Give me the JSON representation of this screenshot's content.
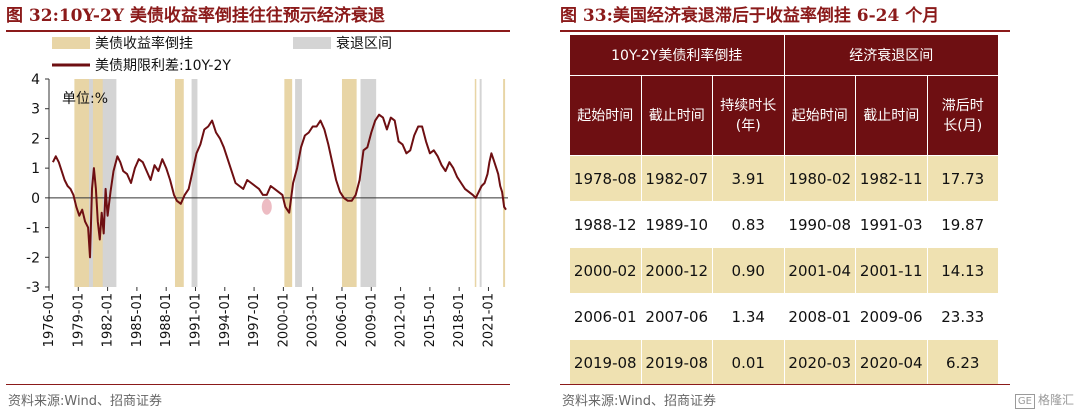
{
  "left_title": "图 32:10Y-2Y 美债收益率倒挂往往预示经济衰退",
  "left_source": "资料来源:Wind、招商证券",
  "right_title": "图 33:美国经济衰退滞后于收益率倒挂 6-24 个月",
  "right_source": "资料来源:Wind、招商证券",
  "watermark": {
    "box": "GE",
    "text": "格隆汇"
  },
  "colors": {
    "brand": "#8b1a1a",
    "header": "#6e0f12",
    "band_inversion": "#e8d5a6",
    "band_recession": "#d4d4d4",
    "line": "#6e0f12",
    "row_alt": "#efe1b1"
  },
  "chart_data": {
    "type": "line",
    "title": "",
    "unit_label": "单位:%",
    "legend": [
      {
        "key": "inversion",
        "label": "美债收益率倒挂",
        "kind": "band"
      },
      {
        "key": "recession",
        "label": "衰退区间",
        "kind": "band"
      },
      {
        "key": "spread",
        "label": "美债期限利差:10Y-2Y",
        "kind": "line"
      }
    ],
    "legend_position": "top",
    "grid": false,
    "ylim": [
      -3,
      4
    ],
    "yticks": [
      -3,
      -2,
      -1,
      0,
      1,
      2,
      3,
      4
    ],
    "xlim": [
      1976.0,
      2023.0
    ],
    "xticks": [
      "1976-01",
      "1979-01",
      "1982-01",
      "1985-01",
      "1988-01",
      "1991-01",
      "1994-01",
      "1997-01",
      "2000-01",
      "2003-01",
      "2006-01",
      "2009-01",
      "2012-01",
      "2015-01",
      "2018-01",
      "2021-01"
    ],
    "inversion_bands": [
      [
        1978.6,
        1982.5
      ],
      [
        1988.9,
        1989.8
      ],
      [
        2000.1,
        2000.9
      ],
      [
        2006.0,
        2007.5
      ],
      [
        2019.6,
        2019.7
      ],
      [
        2022.5,
        2022.7
      ]
    ],
    "recession_bands": [
      [
        1980.1,
        1980.5
      ],
      [
        1981.5,
        1982.9
      ],
      [
        1990.6,
        1991.2
      ],
      [
        2001.2,
        2001.9
      ],
      [
        2007.9,
        2009.5
      ],
      [
        2020.1,
        2020.3
      ]
    ],
    "highlight_ellipse": [
      1998.3,
      -0.3
    ],
    "series": [
      {
        "name": "美债期限利差:10Y-2Y",
        "points": [
          [
            1976.4,
            1.2
          ],
          [
            1976.7,
            1.4
          ],
          [
            1977.0,
            1.2
          ],
          [
            1977.3,
            0.9
          ],
          [
            1977.6,
            0.6
          ],
          [
            1977.9,
            0.4
          ],
          [
            1978.2,
            0.3
          ],
          [
            1978.5,
            0.1
          ],
          [
            1978.8,
            -0.3
          ],
          [
            1979.1,
            -0.6
          ],
          [
            1979.4,
            -0.4
          ],
          [
            1979.7,
            -0.8
          ],
          [
            1980.0,
            -1.0
          ],
          [
            1980.2,
            -2.0
          ],
          [
            1980.4,
            0.3
          ],
          [
            1980.6,
            1.0
          ],
          [
            1980.8,
            0.3
          ],
          [
            1981.0,
            -0.8
          ],
          [
            1981.2,
            -1.4
          ],
          [
            1981.4,
            -0.5
          ],
          [
            1981.6,
            -1.2
          ],
          [
            1981.8,
            0.3
          ],
          [
            1982.0,
            -0.6
          ],
          [
            1982.3,
            0.2
          ],
          [
            1982.6,
            0.9
          ],
          [
            1983.0,
            1.4
          ],
          [
            1983.3,
            1.2
          ],
          [
            1983.6,
            0.9
          ],
          [
            1984.0,
            0.8
          ],
          [
            1984.4,
            0.5
          ],
          [
            1984.8,
            1.0
          ],
          [
            1985.2,
            1.3
          ],
          [
            1985.6,
            1.2
          ],
          [
            1986.0,
            0.9
          ],
          [
            1986.4,
            0.6
          ],
          [
            1986.8,
            1.1
          ],
          [
            1987.2,
            0.9
          ],
          [
            1987.6,
            1.3
          ],
          [
            1988.0,
            1.0
          ],
          [
            1988.4,
            0.6
          ],
          [
            1988.8,
            0.1
          ],
          [
            1989.1,
            -0.1
          ],
          [
            1989.5,
            -0.2
          ],
          [
            1989.9,
            0.1
          ],
          [
            1990.3,
            0.3
          ],
          [
            1990.7,
            0.9
          ],
          [
            1991.1,
            1.5
          ],
          [
            1991.5,
            1.8
          ],
          [
            1991.9,
            2.3
          ],
          [
            1992.3,
            2.4
          ],
          [
            1992.7,
            2.6
          ],
          [
            1993.1,
            2.2
          ],
          [
            1993.5,
            2.0
          ],
          [
            1993.9,
            1.7
          ],
          [
            1994.3,
            1.3
          ],
          [
            1994.7,
            0.9
          ],
          [
            1995.1,
            0.5
          ],
          [
            1995.5,
            0.4
          ],
          [
            1995.9,
            0.3
          ],
          [
            1996.3,
            0.6
          ],
          [
            1996.7,
            0.5
          ],
          [
            1997.1,
            0.4
          ],
          [
            1997.5,
            0.3
          ],
          [
            1997.9,
            0.1
          ],
          [
            1998.3,
            0.1
          ],
          [
            1998.7,
            0.4
          ],
          [
            1999.1,
            0.3
          ],
          [
            1999.5,
            0.2
          ],
          [
            1999.9,
            0.1
          ],
          [
            2000.2,
            -0.3
          ],
          [
            2000.6,
            -0.5
          ],
          [
            2001.0,
            0.5
          ],
          [
            2001.4,
            1.0
          ],
          [
            2001.8,
            1.7
          ],
          [
            2002.2,
            2.1
          ],
          [
            2002.6,
            2.2
          ],
          [
            2003.0,
            2.4
          ],
          [
            2003.4,
            2.4
          ],
          [
            2003.8,
            2.6
          ],
          [
            2004.2,
            2.3
          ],
          [
            2004.6,
            1.8
          ],
          [
            2005.0,
            1.2
          ],
          [
            2005.4,
            0.6
          ],
          [
            2005.8,
            0.2
          ],
          [
            2006.2,
            0.0
          ],
          [
            2006.6,
            -0.1
          ],
          [
            2007.0,
            -0.1
          ],
          [
            2007.4,
            0.1
          ],
          [
            2007.8,
            0.6
          ],
          [
            2008.2,
            1.6
          ],
          [
            2008.6,
            1.7
          ],
          [
            2009.0,
            2.2
          ],
          [
            2009.4,
            2.6
          ],
          [
            2009.8,
            2.8
          ],
          [
            2010.2,
            2.7
          ],
          [
            2010.6,
            2.3
          ],
          [
            2011.0,
            2.7
          ],
          [
            2011.4,
            2.6
          ],
          [
            2011.8,
            1.9
          ],
          [
            2012.2,
            1.8
          ],
          [
            2012.6,
            1.5
          ],
          [
            2013.0,
            1.6
          ],
          [
            2013.4,
            2.1
          ],
          [
            2013.8,
            2.4
          ],
          [
            2014.2,
            2.4
          ],
          [
            2014.6,
            1.9
          ],
          [
            2015.0,
            1.5
          ],
          [
            2015.4,
            1.6
          ],
          [
            2015.8,
            1.4
          ],
          [
            2016.2,
            1.1
          ],
          [
            2016.6,
            0.9
          ],
          [
            2017.0,
            1.2
          ],
          [
            2017.4,
            1.0
          ],
          [
            2017.8,
            0.7
          ],
          [
            2018.2,
            0.5
          ],
          [
            2018.6,
            0.3
          ],
          [
            2019.0,
            0.2
          ],
          [
            2019.4,
            0.1
          ],
          [
            2019.7,
            0.0
          ],
          [
            2020.0,
            0.2
          ],
          [
            2020.3,
            0.4
          ],
          [
            2020.6,
            0.5
          ],
          [
            2020.9,
            0.8
          ],
          [
            2021.1,
            1.2
          ],
          [
            2021.3,
            1.5
          ],
          [
            2021.5,
            1.3
          ],
          [
            2021.8,
            1.0
          ],
          [
            2022.0,
            0.8
          ],
          [
            2022.2,
            0.4
          ],
          [
            2022.4,
            0.2
          ],
          [
            2022.6,
            -0.3
          ],
          [
            2022.8,
            -0.4
          ]
        ]
      }
    ]
  },
  "table": {
    "group_headers": [
      "10Y-2Y美债利率倒挂",
      "经济衰退区间"
    ],
    "columns": [
      [
        "起始时间"
      ],
      [
        "截止时间"
      ],
      [
        "持续时长",
        "(年)"
      ],
      [
        "起始时间"
      ],
      [
        "截止时间"
      ],
      [
        "滞后时",
        "长(月)"
      ]
    ],
    "rows": [
      [
        "1978-08",
        "1982-07",
        "3.91",
        "1980-02",
        "1982-11",
        "17.73"
      ],
      [
        "1988-12",
        "1989-10",
        "0.83",
        "1990-08",
        "1991-03",
        "19.87"
      ],
      [
        "2000-02",
        "2000-12",
        "0.90",
        "2001-04",
        "2001-11",
        "14.13"
      ],
      [
        "2006-01",
        "2007-06",
        "1.34",
        "2008-01",
        "2009-06",
        "23.33"
      ],
      [
        "2019-08",
        "2019-08",
        "0.01",
        "2020-03",
        "2020-04",
        "6.23"
      ]
    ]
  }
}
